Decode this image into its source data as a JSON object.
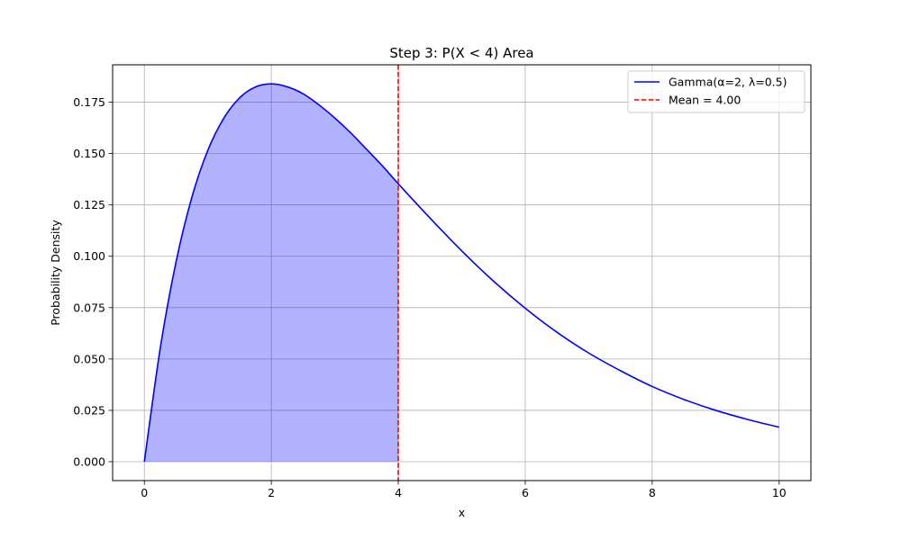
{
  "chart_data": {
    "type": "line",
    "title": "Step 3: P(X < 4) Area",
    "xlabel": "x",
    "ylabel": "Probability Density",
    "xlim": [
      -0.5,
      10.5
    ],
    "ylim": [
      -0.0092,
      0.1932
    ],
    "x_ticks": [
      0,
      2,
      4,
      6,
      8,
      10
    ],
    "x_tick_labels": [
      "0",
      "2",
      "4",
      "6",
      "8",
      "10"
    ],
    "y_ticks": [
      0.0,
      0.025,
      0.05,
      0.075,
      0.1,
      0.125,
      0.15,
      0.175
    ],
    "y_tick_labels": [
      "0.000",
      "0.025",
      "0.050",
      "0.075",
      "0.100",
      "0.125",
      "0.150",
      "0.175"
    ],
    "grid": true,
    "legend_placement": "top-right",
    "series": [
      {
        "name": "Gamma(α=2, λ=0.5)",
        "kind": "curve",
        "color": "#0000ff",
        "x": [
          0,
          0.25,
          0.5,
          0.75,
          1,
          1.25,
          1.5,
          1.75,
          2,
          2.25,
          2.5,
          2.75,
          3,
          3.25,
          3.5,
          3.75,
          4,
          4.5,
          5,
          5.5,
          6,
          6.5,
          7,
          7.5,
          8,
          8.5,
          9,
          9.5,
          10
        ],
        "y": [
          0,
          0.0552,
          0.0974,
          0.1289,
          0.1516,
          0.1671,
          0.1771,
          0.1824,
          0.1839,
          0.1825,
          0.1791,
          0.1737,
          0.1673,
          0.1601,
          0.1521,
          0.144,
          0.1353,
          0.1186,
          0.1026,
          0.0879,
          0.0747,
          0.063,
          0.0529,
          0.0443,
          0.0366,
          0.0303,
          0.025,
          0.0206,
          0.0168
        ]
      },
      {
        "name": "Mean = 4.00",
        "kind": "vline",
        "color": "#ff0000",
        "x_value": 4.0
      }
    ],
    "shaded_region": {
      "x_from": 0,
      "x_to": 4,
      "color": "#0000ff",
      "opacity": 0.3
    }
  }
}
